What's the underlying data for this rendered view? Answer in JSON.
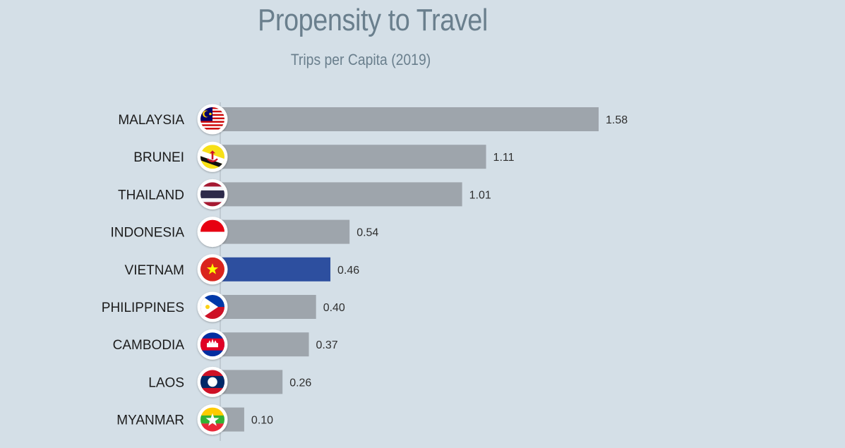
{
  "chart_data": {
    "type": "bar",
    "orientation": "horizontal",
    "title": "Propensity to Travel",
    "subtitle": "Trips per Capita (2019)",
    "categories": [
      "MALAYSIA",
      "BRUNEI",
      "THAILAND",
      "INDONESIA",
      "VIETNAM",
      "PHILIPPINES",
      "CAMBODIA",
      "LAOS",
      "MYANMAR"
    ],
    "values": [
      1.58,
      1.11,
      1.01,
      0.54,
      0.46,
      0.4,
      0.37,
      0.26,
      0.1
    ],
    "value_labels": [
      "1.58",
      "1.11",
      "1.01",
      "0.54",
      "0.46",
      "0.40",
      "0.37",
      "0.26",
      "0.10"
    ],
    "icons": [
      "malaysia-flag-icon",
      "brunei-flag-icon",
      "thailand-flag-icon",
      "indonesia-flag-icon",
      "vietnam-flag-icon",
      "philippines-flag-icon",
      "cambodia-flag-icon",
      "laos-flag-icon",
      "myanmar-flag-icon"
    ],
    "highlight": "VIETNAM",
    "colors": {
      "bar": "#9ea5ac",
      "highlight": "#2d4f9f",
      "background": "#d4dfe7",
      "title": "#6a7f8d"
    },
    "xlim": [
      0,
      1.58
    ],
    "grid": false,
    "legend": "none"
  }
}
